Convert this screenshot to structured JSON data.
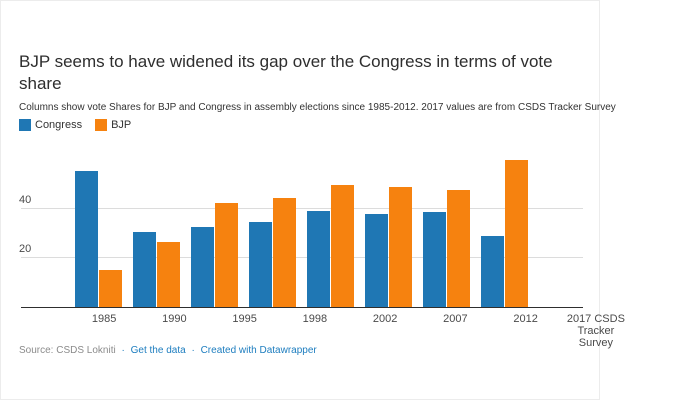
{
  "header": {
    "title": "BJP seems to have widened its gap over the Congress in terms of vote share",
    "subtitle": "Columns show vote Shares for BJP and Congress in assembly elections since 1985-2012. 2017 values are from CSDS Tracker Survey"
  },
  "legend": {
    "items": [
      {
        "label": "Congress",
        "color": "#1f77b4"
      },
      {
        "label": "BJP",
        "color": "#f6820f"
      }
    ]
  },
  "chart_data": {
    "type": "bar",
    "title": "BJP seems to have widened its gap over the Congress in terms of vote share",
    "subtitle": "Columns show vote Shares for BJP and Congress in assembly elections since 1985-2012. 2017 values are from CSDS Tracker Survey",
    "categories": [
      "1985",
      "1990",
      "1995",
      "1998",
      "2002",
      "2007",
      "2012",
      "2017 CSDS\nTracker\nSurvey"
    ],
    "series": [
      {
        "name": "Congress",
        "color": "#1f77b4",
        "values": [
          55.5,
          30.7,
          32.9,
          34.9,
          39.3,
          38.0,
          38.9,
          29.0
        ]
      },
      {
        "name": "BJP",
        "color": "#f6820f",
        "values": [
          15.0,
          26.7,
          42.5,
          44.8,
          49.9,
          49.1,
          47.9,
          60.0
        ]
      }
    ],
    "xlabel": "",
    "ylabel": "",
    "yticks": [
      20,
      40
    ],
    "ylim": [
      0,
      61
    ],
    "grid": "horizontal",
    "legend_position": "top-left",
    "source": "CSDS Lokniti"
  },
  "footer": {
    "source": "Source: CSDS Lokniti",
    "separator": "·",
    "links": [
      {
        "label": "Get the data"
      },
      {
        "label": "Created with Datawrapper"
      }
    ],
    "link_color": "#1d7dbf"
  }
}
